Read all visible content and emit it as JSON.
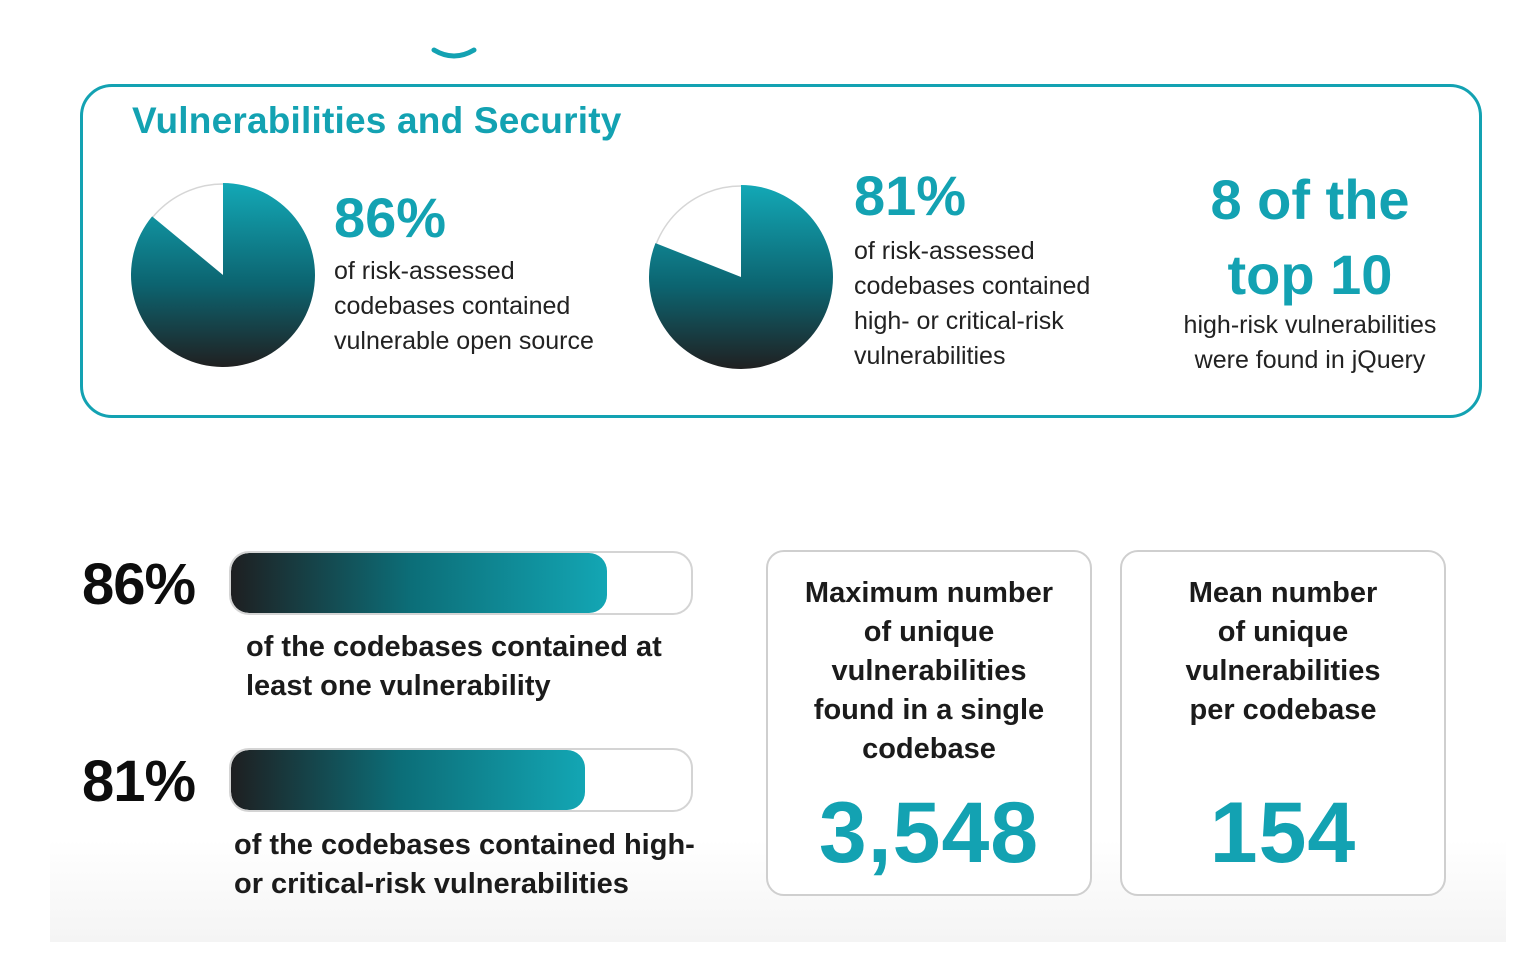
{
  "colors": {
    "accent": "#13a2b2",
    "dark": "#1e1f21"
  },
  "section": {
    "title": "Vulnerabilities and Security"
  },
  "stats": [
    {
      "value": "86%",
      "description": "of risk-assessed\ncodebases contained\nvulnerable open source"
    },
    {
      "value": "81%",
      "description": "of risk-assessed\ncodebases contained\nhigh- or critical-risk\nvulnerabilities"
    }
  ],
  "top10": {
    "headline": "8 of the\ntop 10",
    "description": "high-risk vulnerabilities\nwere found in jQuery"
  },
  "bars": [
    {
      "label": "86%",
      "description": "of the codebases contained at\nleast one vulnerability"
    },
    {
      "label": "81%",
      "description": "of the codebases contained high-\nor critical-risk vulnerabilities"
    }
  ],
  "cards": [
    {
      "label": "Maximum number\nof unique\nvulnerabilities\nfound in a single\ncodebase",
      "value": "3,548"
    },
    {
      "label": "Mean number\nof unique\nvulnerabilities\nper codebase",
      "value": "154"
    }
  ],
  "chart_data": [
    {
      "type": "pie",
      "slices": [
        {
          "label": "vulnerable",
          "value": 86
        },
        {
          "label": "other",
          "value": 14
        }
      ]
    },
    {
      "type": "pie",
      "slices": [
        {
          "label": "high- or critical-risk",
          "value": 81
        },
        {
          "label": "other",
          "value": 19
        }
      ]
    },
    {
      "type": "bar",
      "categories": [
        "at least one vulnerability",
        "high- or critical-risk vulnerabilities"
      ],
      "values": [
        86,
        81
      ],
      "ylim": [
        0,
        100
      ]
    }
  ]
}
